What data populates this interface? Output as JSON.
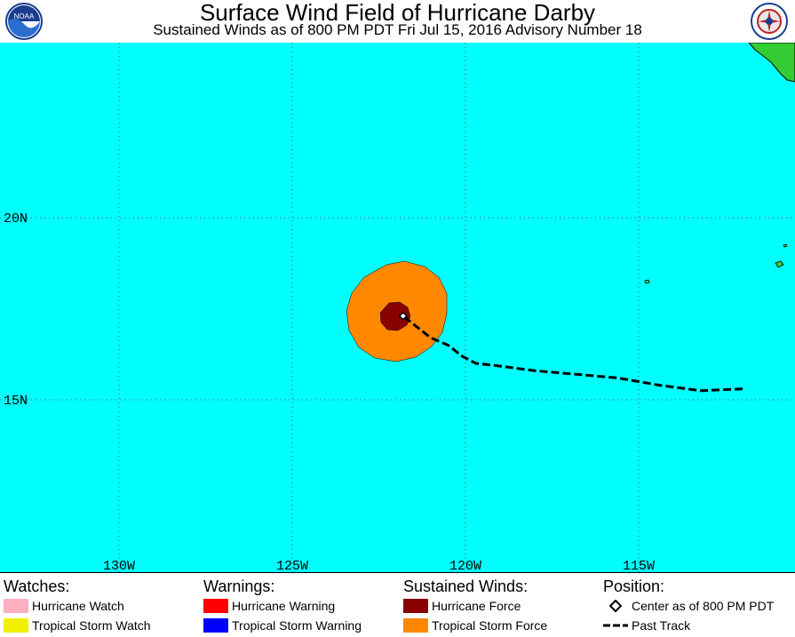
{
  "header": {
    "title": "Surface Wind Field of Hurricane Darby",
    "subtitle": "Sustained Winds as of 800 PM PDT Fri Jul 15, 2016   Advisory Number 18",
    "left_logo": "noaa-logo",
    "right_logo": "nws-logo"
  },
  "map": {
    "ocean_color": "#00ffff",
    "land_color": "#33cc33",
    "lon_labels": [
      "130W",
      "125W",
      "120W",
      "115W"
    ],
    "lat_labels": [
      "20N",
      "15N"
    ]
  },
  "storm": {
    "center_lat": 17.3,
    "center_lon": -121.8,
    "hurricane_force_color": "#880000",
    "tropical_storm_force_color": "#ff8800",
    "past_track": [
      [
        -112.0,
        15.3
      ],
      [
        -113.2,
        15.25
      ],
      [
        -114.4,
        15.4
      ],
      [
        -115.6,
        15.6
      ],
      [
        -116.8,
        15.7
      ],
      [
        -118.0,
        15.8
      ],
      [
        -119.2,
        15.95
      ],
      [
        -119.7,
        16.0
      ],
      [
        -120.1,
        16.2
      ],
      [
        -120.5,
        16.5
      ],
      [
        -121.0,
        16.7
      ],
      [
        -121.8,
        17.3
      ]
    ]
  },
  "legend": {
    "watches": {
      "heading": "Watches:",
      "items": [
        {
          "label": "Hurricane Watch",
          "color": "#ffb0c0"
        },
        {
          "label": "Tropical Storm Watch",
          "color": "#f0f000"
        }
      ]
    },
    "warnings": {
      "heading": "Warnings:",
      "items": [
        {
          "label": "Hurricane Warning",
          "color": "#ff0000"
        },
        {
          "label": "Tropical Storm Warning",
          "color": "#0000ff"
        }
      ]
    },
    "winds": {
      "heading": "Sustained Winds:",
      "items": [
        {
          "label": "Hurricane Force",
          "color": "#880000"
        },
        {
          "label": "Tropical Storm Force",
          "color": "#ff8800"
        }
      ]
    },
    "position": {
      "heading": "Position:",
      "items": [
        {
          "label": "Center as of 800 PM PDT",
          "symbol": "diamond-icon"
        },
        {
          "label": "Past Track",
          "symbol": "dashed-line-icon"
        }
      ]
    }
  }
}
